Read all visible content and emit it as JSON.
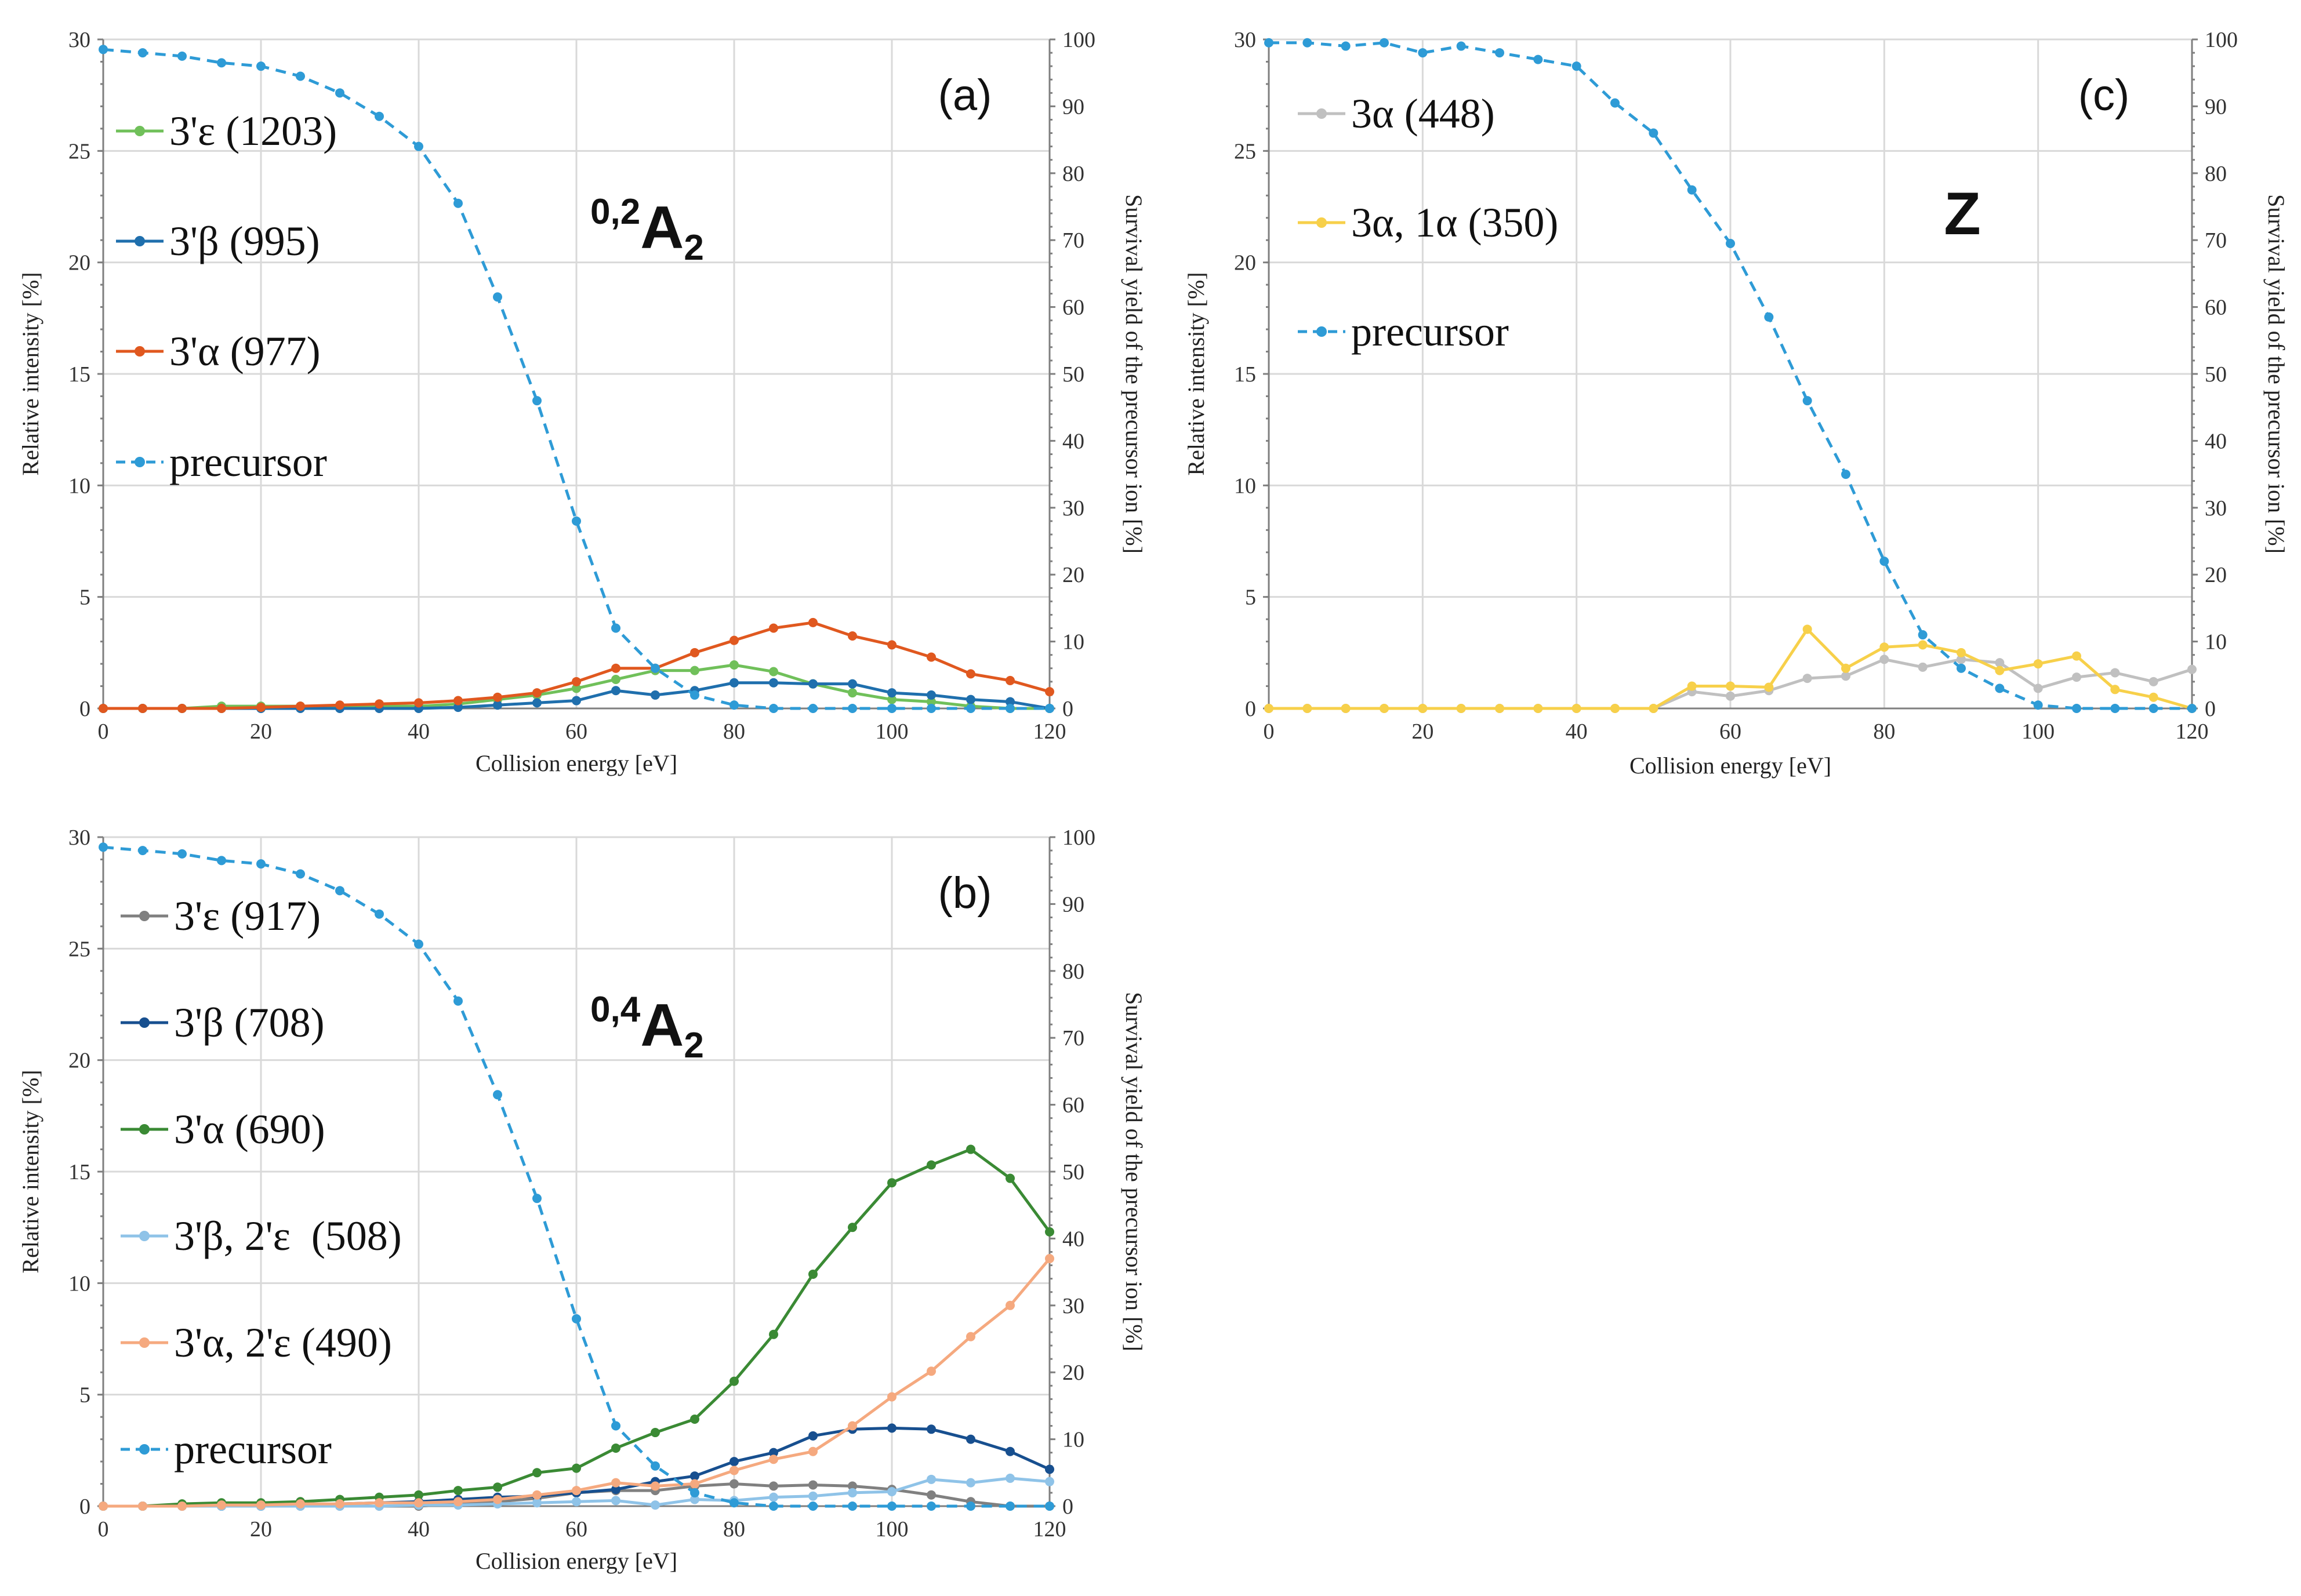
{
  "chart_data": [
    {
      "id": "a",
      "type": "line",
      "panel_label": "(a)",
      "annotation": {
        "superscript": "0,2",
        "main": "A",
        "subscript": "2"
      },
      "xlabel": "Collision energy [eV]",
      "ylabel": "Relative intensity [%]",
      "y2label": "Survival yield of the precursor ion [%]",
      "xlim": [
        0,
        120
      ],
      "ylim": [
        0,
        30
      ],
      "y2lim": [
        0,
        100
      ],
      "x_ticks": [
        0,
        20,
        40,
        60,
        80,
        100,
        120
      ],
      "y_ticks": [
        0,
        5,
        10,
        15,
        20,
        25,
        30
      ],
      "y2_ticks": [
        0,
        10,
        20,
        30,
        40,
        50,
        60,
        70,
        80,
        90,
        100
      ],
      "x": [
        0,
        5,
        10,
        15,
        20,
        25,
        30,
        35,
        40,
        45,
        50,
        55,
        60,
        65,
        70,
        75,
        80,
        85,
        90,
        95,
        100,
        105,
        110,
        115,
        120
      ],
      "series": [
        {
          "name": "3'ε (1203)",
          "color": "#70c05a",
          "axis": "left",
          "dashed": false,
          "values": [
            0,
            0,
            0,
            0.1,
            0.1,
            0.1,
            0.1,
            0.1,
            0.1,
            0.2,
            0.4,
            0.6,
            0.9,
            1.3,
            1.7,
            1.7,
            1.95,
            1.65,
            1.1,
            0.7,
            0.4,
            0.3,
            0.1,
            0.0,
            0.0
          ]
        },
        {
          "name": "3'β (995)",
          "color": "#1f6fad",
          "axis": "left",
          "dashed": false,
          "values": [
            0,
            0,
            0,
            0,
            0,
            0,
            0,
            0,
            0,
            0.05,
            0.15,
            0.25,
            0.35,
            0.8,
            0.6,
            0.8,
            1.15,
            1.15,
            1.1,
            1.1,
            0.7,
            0.6,
            0.4,
            0.3,
            0.0
          ]
        },
        {
          "name": "3'α (977)",
          "color": "#e0581f",
          "axis": "left",
          "dashed": false,
          "values": [
            0,
            0,
            0,
            0,
            0.05,
            0.1,
            0.15,
            0.2,
            0.25,
            0.35,
            0.5,
            0.7,
            1.2,
            1.8,
            1.8,
            2.5,
            3.05,
            3.6,
            3.85,
            3.25,
            2.85,
            2.3,
            1.55,
            1.25,
            0.75
          ]
        },
        {
          "name": "precursor",
          "color": "#2e9bd6",
          "axis": "right",
          "dashed": true,
          "values": [
            98.5,
            98,
            97.5,
            96.5,
            96,
            94.5,
            92,
            88.5,
            84,
            75.5,
            61.5,
            46,
            28,
            12,
            6,
            2,
            0.5,
            0,
            0,
            0,
            0,
            0,
            0,
            0,
            0
          ]
        }
      ]
    },
    {
      "id": "b",
      "type": "line",
      "panel_label": "(b)",
      "annotation": {
        "superscript": "0,4",
        "main": "A",
        "subscript": "2"
      },
      "xlabel": "Collision energy [eV]",
      "ylabel": "Relative intensity [%]",
      "y2label": "Survival yield of the precursor ion [%]",
      "xlim": [
        0,
        120
      ],
      "ylim": [
        0,
        30
      ],
      "y2lim": [
        0,
        100
      ],
      "x_ticks": [
        0,
        20,
        40,
        60,
        80,
        100,
        120
      ],
      "y_ticks": [
        0,
        5,
        10,
        15,
        20,
        25,
        30
      ],
      "y2_ticks": [
        0,
        10,
        20,
        30,
        40,
        50,
        60,
        70,
        80,
        90,
        100
      ],
      "x": [
        0,
        5,
        10,
        15,
        20,
        25,
        30,
        35,
        40,
        45,
        50,
        55,
        60,
        65,
        70,
        75,
        80,
        85,
        90,
        95,
        100,
        105,
        110,
        115,
        120
      ],
      "series": [
        {
          "name": "3'ε (917)",
          "color": "#808080",
          "axis": "left",
          "dashed": false,
          "values": [
            0,
            0,
            0,
            0,
            0,
            0,
            0,
            0,
            0,
            0.1,
            0.2,
            0.35,
            0.6,
            0.7,
            0.7,
            0.9,
            1.0,
            0.9,
            0.95,
            0.9,
            0.75,
            0.5,
            0.2,
            0.0,
            0.0
          ]
        },
        {
          "name": "3'β (708)",
          "color": "#174f8f",
          "axis": "left",
          "dashed": false,
          "values": [
            0,
            0,
            0,
            0,
            0,
            0.05,
            0.1,
            0.15,
            0.2,
            0.3,
            0.4,
            0.45,
            0.6,
            0.75,
            1.1,
            1.35,
            2.0,
            2.4,
            3.15,
            3.45,
            3.5,
            3.45,
            3.0,
            2.45,
            1.65
          ]
        },
        {
          "name": "3'α (690)",
          "color": "#3a8a34",
          "axis": "left",
          "dashed": false,
          "values": [
            0,
            0,
            0.1,
            0.15,
            0.15,
            0.2,
            0.3,
            0.4,
            0.5,
            0.7,
            0.85,
            1.5,
            1.7,
            2.6,
            3.3,
            3.9,
            5.6,
            7.7,
            10.4,
            12.5,
            14.5,
            15.3,
            16.0,
            14.7,
            12.3
          ]
        },
        {
          "name": "3'β, 2'ε  (508)",
          "color": "#8fc3e8",
          "axis": "left",
          "dashed": false,
          "values": [
            0,
            0,
            0,
            0,
            0,
            0,
            0,
            0,
            0.05,
            0.05,
            0.1,
            0.15,
            0.2,
            0.25,
            0.05,
            0.3,
            0.25,
            0.4,
            0.45,
            0.6,
            0.65,
            1.2,
            1.05,
            1.25,
            1.1
          ]
        },
        {
          "name": "3'α, 2'ε (490)",
          "color": "#f5a97f",
          "axis": "left",
          "dashed": false,
          "values": [
            0,
            0,
            0,
            0.05,
            0.05,
            0.1,
            0.1,
            0.15,
            0.15,
            0.2,
            0.3,
            0.5,
            0.7,
            1.05,
            0.9,
            1.0,
            1.6,
            2.1,
            2.45,
            3.6,
            4.9,
            6.05,
            7.6,
            9.0,
            11.1
          ]
        },
        {
          "name": "precursor",
          "color": "#2e9bd6",
          "axis": "right",
          "dashed": true,
          "values": [
            98.5,
            98,
            97.5,
            96.5,
            96,
            94.5,
            92,
            88.5,
            84,
            75.5,
            61.5,
            46,
            28,
            12,
            6,
            2,
            0.5,
            0,
            0,
            0,
            0,
            0,
            0,
            0,
            0
          ]
        }
      ]
    },
    {
      "id": "c",
      "type": "line",
      "panel_label": "(c)",
      "annotation": {
        "main": "Z"
      },
      "xlabel": "Collision energy [eV]",
      "ylabel": "Relative intensity [%]",
      "y2label": "Survival yield of the precursor ion [%]",
      "xlim": [
        0,
        120
      ],
      "ylim": [
        0,
        30
      ],
      "y2lim": [
        0,
        100
      ],
      "x_ticks": [
        0,
        20,
        40,
        60,
        80,
        100,
        120
      ],
      "y_ticks": [
        0,
        5,
        10,
        15,
        20,
        25,
        30
      ],
      "y2_ticks": [
        0,
        10,
        20,
        30,
        40,
        50,
        60,
        70,
        80,
        90,
        100
      ],
      "x": [
        0,
        5,
        10,
        15,
        20,
        25,
        30,
        35,
        40,
        45,
        50,
        55,
        60,
        65,
        70,
        75,
        80,
        85,
        90,
        95,
        100,
        105,
        110,
        115,
        120
      ],
      "series": [
        {
          "name": "3α (448)",
          "color": "#c0c0c0",
          "axis": "left",
          "dashed": false,
          "values": [
            0,
            0,
            0,
            0,
            0,
            0,
            0,
            0,
            0,
            0,
            0,
            0.75,
            0.55,
            0.8,
            1.35,
            1.45,
            2.2,
            1.85,
            2.2,
            2.05,
            0.9,
            1.4,
            1.6,
            1.2,
            1.75
          ]
        },
        {
          "name": "3α, 1α (350)",
          "color": "#f7d04a",
          "axis": "left",
          "dashed": false,
          "values": [
            0,
            0,
            0,
            0,
            0,
            0,
            0,
            0,
            0,
            0,
            0,
            1.0,
            1.0,
            0.95,
            3.55,
            1.8,
            2.75,
            2.85,
            2.5,
            1.7,
            2.0,
            2.35,
            0.85,
            0.5,
            0.0
          ]
        },
        {
          "name": "precursor",
          "color": "#2e9bd6",
          "axis": "right",
          "dashed": true,
          "values": [
            99.5,
            99.5,
            99,
            99.5,
            98,
            99,
            98,
            97,
            96,
            90.5,
            86,
            77.5,
            69.5,
            58.5,
            46,
            35,
            22,
            11,
            6,
            3,
            0.5,
            0,
            0,
            0,
            0
          ]
        }
      ]
    }
  ]
}
